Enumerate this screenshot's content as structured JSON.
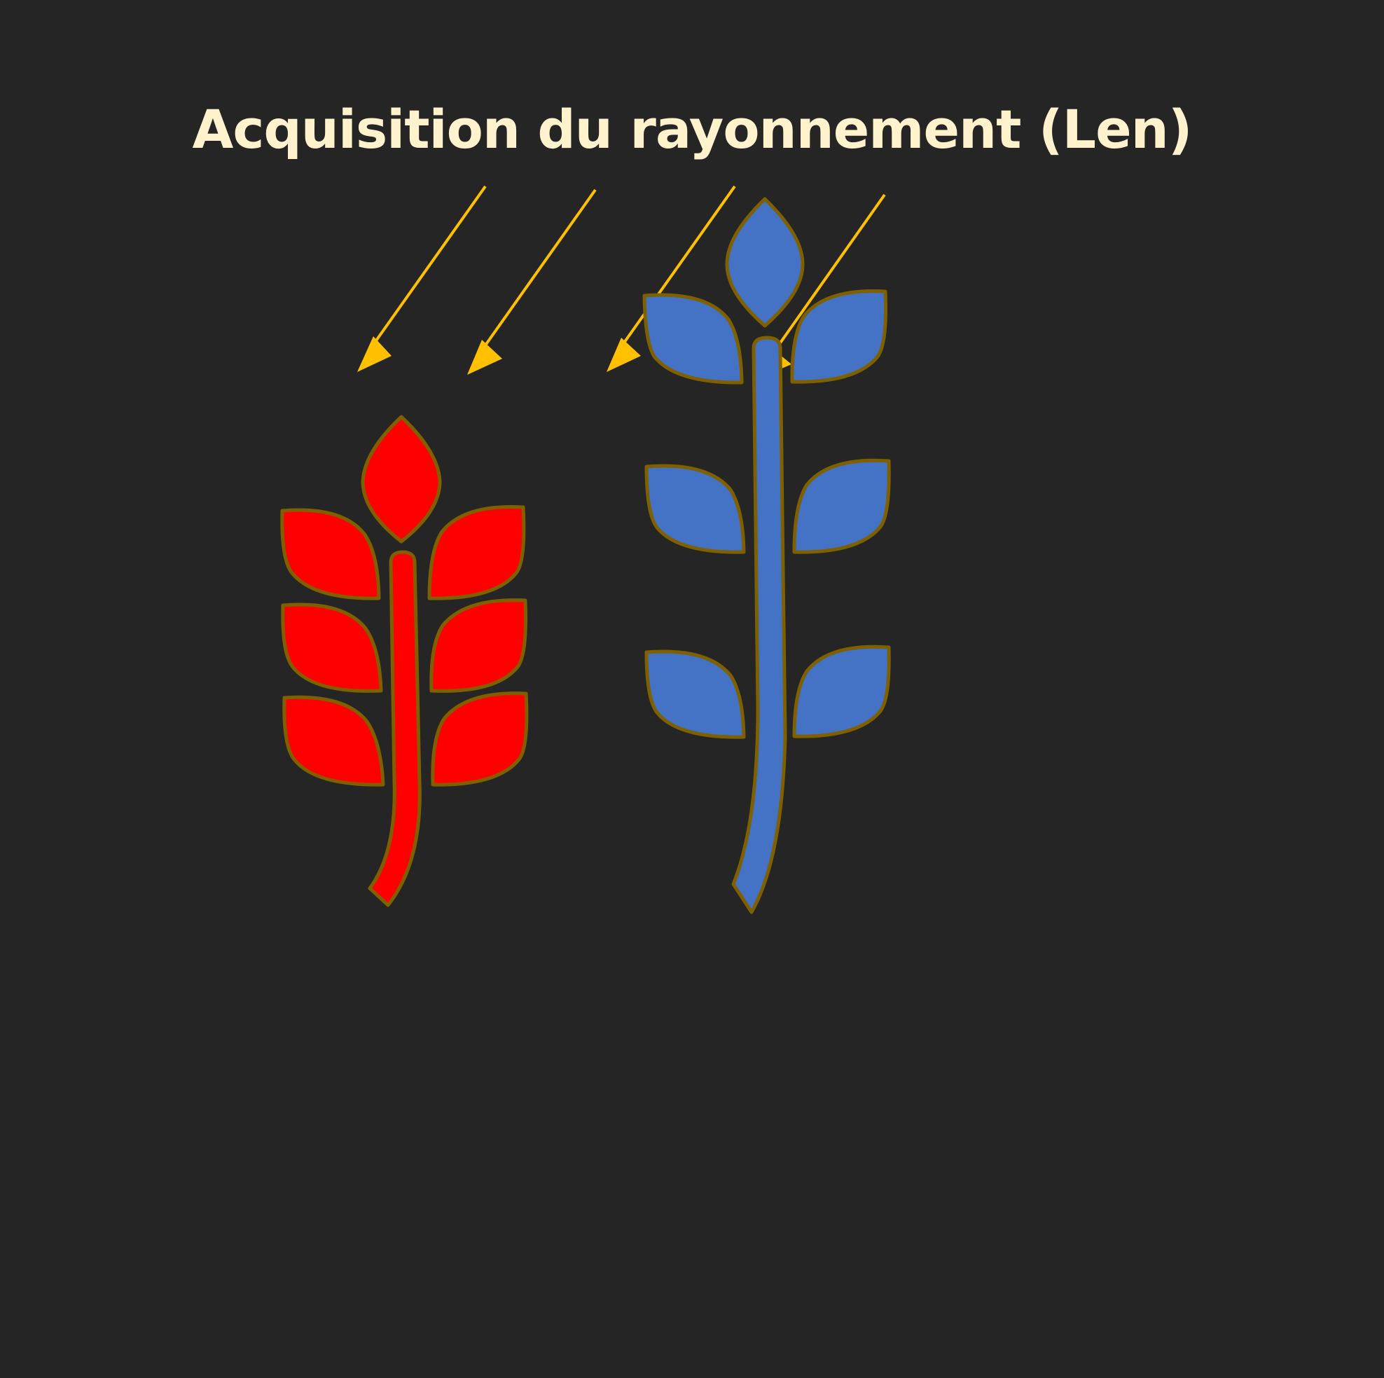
{
  "title": "Acquisition du rayonnement (Len)",
  "colors": {
    "background": "#252525",
    "title_text": "#fff2cc",
    "arrow": "#ffc000",
    "outline": "#7f6000",
    "plant_left_fill": "#ff0000",
    "plant_right_fill": "#4472c4"
  },
  "elements": {
    "arrows": 4,
    "plants": [
      "compact-red-plant",
      "tall-blue-plant"
    ]
  }
}
